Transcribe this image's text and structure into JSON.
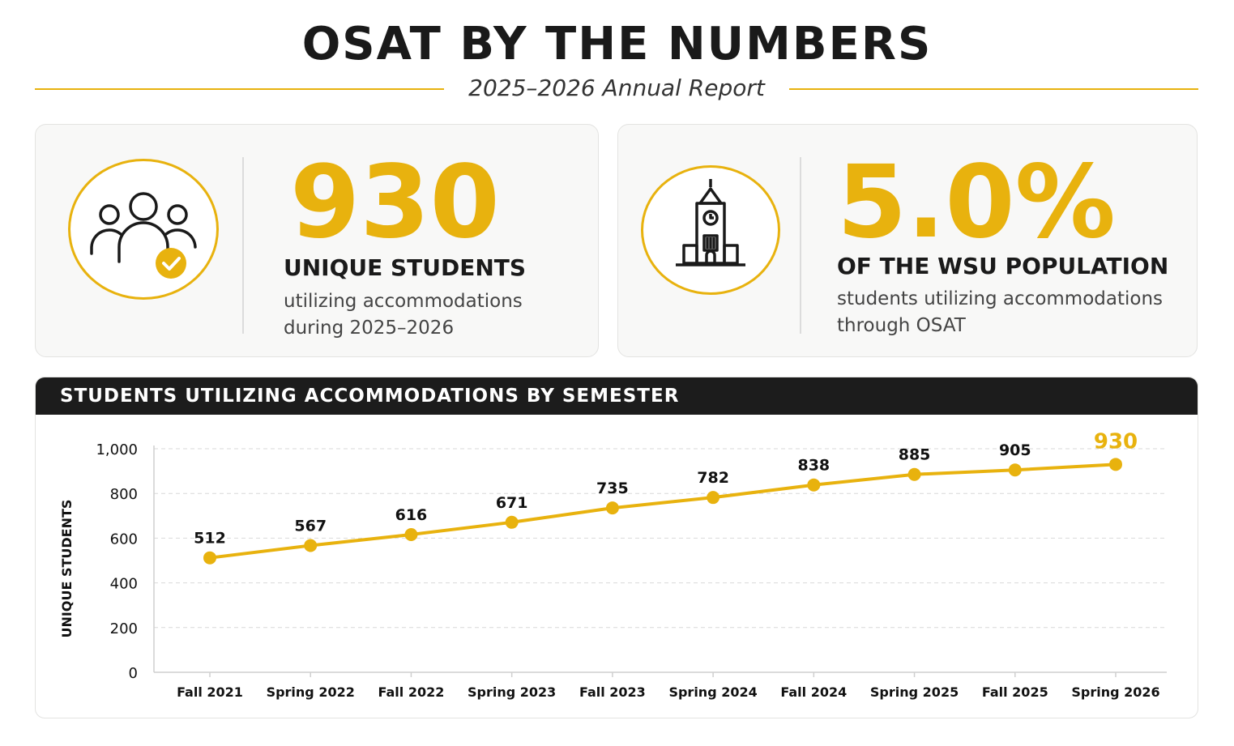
{
  "header": {
    "title": "OSAT BY THE NUMBERS",
    "subtitle": "2025–2026 Annual Report"
  },
  "kpis": [
    {
      "icon": "people-check-icon",
      "value": "930",
      "label": "UNIQUE STUDENTS",
      "description": "utilizing accommodations during 2025–2026"
    },
    {
      "icon": "clock-tower-icon",
      "value": "5.0%",
      "label": "OF THE WSU POPULATION",
      "description": "students utilizing accommodations through OSAT"
    }
  ],
  "colors": {
    "accent": "#E8B20E",
    "dark": "#1c1c1c",
    "card_bg": "#f8f8f7"
  },
  "chart_data": {
    "type": "line",
    "title": "STUDENTS UTILIZING ACCOMMODATIONS BY SEMESTER",
    "ylabel": "UNIQUE STUDENTS",
    "xlabel": "",
    "categories": [
      "Fall 2021",
      "Spring 2022",
      "Fall 2022",
      "Spring 2023",
      "Fall 2023",
      "Spring 2024",
      "Fall 2024",
      "Spring 2025",
      "Fall 2025",
      "Spring 2026"
    ],
    "values": [
      512,
      567,
      616,
      671,
      735,
      782,
      838,
      885,
      905,
      930
    ],
    "ylim": [
      0,
      1000
    ],
    "yticks": [
      0,
      200,
      400,
      600,
      800,
      1000
    ],
    "ytick_labels": [
      "0",
      "200",
      "400",
      "600",
      "800",
      "1,000"
    ],
    "grid": true,
    "highlight_last": true
  }
}
